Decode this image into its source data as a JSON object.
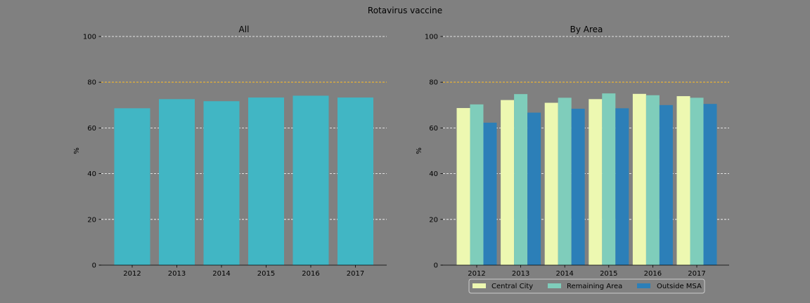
{
  "figure": {
    "title": "Rotavirus vaccine"
  },
  "colors": {
    "background": "#808080",
    "all_bar": "#41b6c4",
    "central_city": "#edf8b1",
    "remaining_area": "#7fcdbb",
    "outside_msa": "#2c7fb8",
    "target_line": "#e6a817",
    "grid": "#ffffff"
  },
  "chart_data": [
    {
      "type": "bar",
      "title": "All",
      "ylabel": "%",
      "xlabel": "",
      "categories": [
        "2012",
        "2013",
        "2014",
        "2015",
        "2016",
        "2017"
      ],
      "series": [
        {
          "values": [
            68.6,
            72.6,
            71.7,
            73.3,
            74.1,
            73.3
          ]
        }
      ],
      "ylim": [
        0,
        100
      ],
      "yticks": [
        0,
        20,
        40,
        60,
        80,
        100
      ],
      "target_line": 80,
      "grid": "y dashed"
    },
    {
      "type": "bar",
      "title": "By Area",
      "ylabel": "%",
      "xlabel": "",
      "categories": [
        "2012",
        "2013",
        "2014",
        "2015",
        "2016",
        "2017"
      ],
      "series": [
        {
          "name": "Central City",
          "values": [
            68.7,
            72.2,
            71.0,
            72.6,
            74.9,
            73.9
          ]
        },
        {
          "name": "Remaining Area",
          "values": [
            70.3,
            74.8,
            73.2,
            75.1,
            74.3,
            73.2
          ]
        },
        {
          "name": "Outside MSA",
          "values": [
            62.3,
            66.7,
            68.4,
            68.6,
            70.0,
            70.5
          ]
        }
      ],
      "ylim": [
        0,
        100
      ],
      "yticks": [
        0,
        20,
        40,
        60,
        80,
        100
      ],
      "target_line": 80,
      "grid": "y dashed",
      "legend": "bottom-center"
    }
  ]
}
